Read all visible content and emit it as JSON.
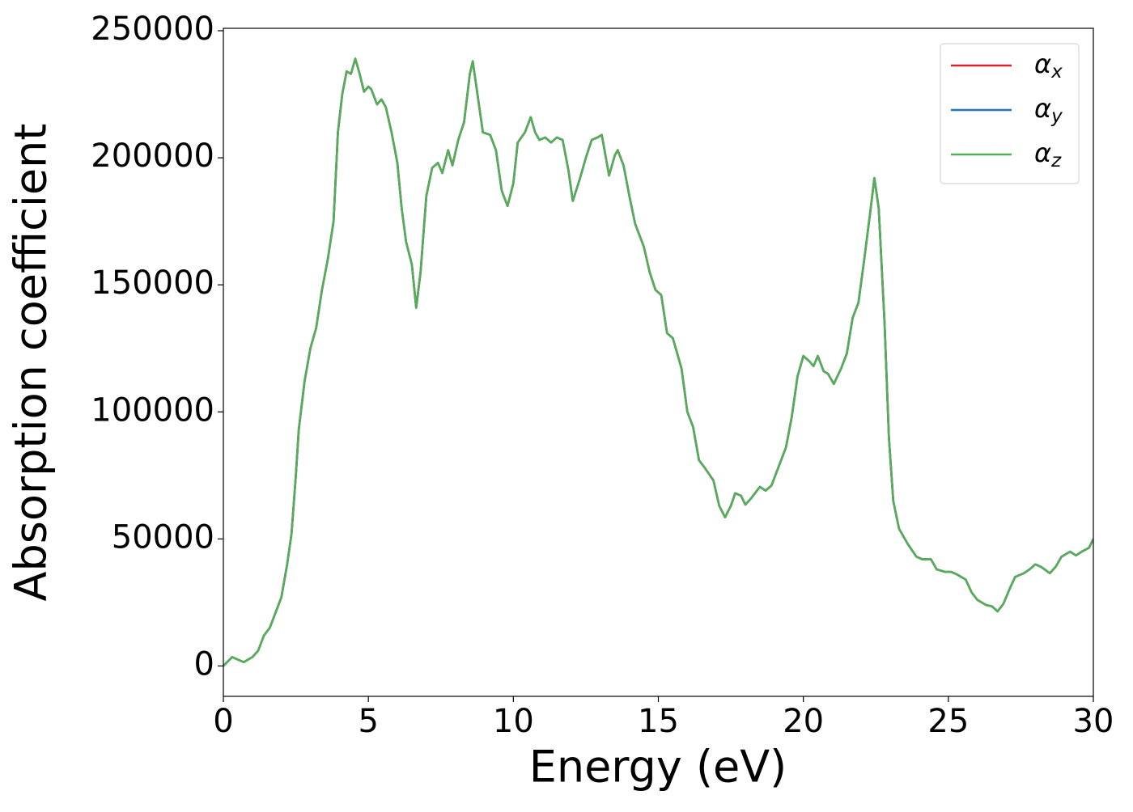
{
  "chart_data": {
    "type": "line",
    "xlabel": "Energy (eV)",
    "ylabel": "Absorption coefficient",
    "xlim": [
      0,
      30
    ],
    "xticks": [
      0,
      5,
      10,
      15,
      20,
      25,
      30
    ],
    "ylim": [
      -11950,
      250950
    ],
    "yticks": [
      0,
      50000,
      100000,
      150000,
      200000,
      250000
    ],
    "legend": "upper right",
    "x": [
      0,
      0.3,
      0.7,
      1.0,
      1.2,
      1.4,
      1.6,
      1.8,
      2.0,
      2.2,
      2.35,
      2.5,
      2.6,
      2.8,
      3.0,
      3.2,
      3.4,
      3.6,
      3.8,
      3.95,
      4.1,
      4.25,
      4.4,
      4.55,
      4.7,
      4.85,
      5.0,
      5.1,
      5.3,
      5.45,
      5.6,
      5.8,
      6.0,
      6.15,
      6.3,
      6.5,
      6.65,
      6.8,
      7.0,
      7.2,
      7.4,
      7.55,
      7.75,
      7.9,
      8.1,
      8.3,
      8.5,
      8.6,
      8.75,
      8.95,
      9.2,
      9.4,
      9.6,
      9.8,
      10.0,
      10.15,
      10.4,
      10.6,
      10.75,
      10.9,
      11.1,
      11.3,
      11.5,
      11.7,
      11.9,
      12.05,
      12.3,
      12.5,
      12.7,
      12.9,
      13.05,
      13.3,
      13.5,
      13.6,
      13.8,
      14.0,
      14.2,
      14.5,
      14.7,
      14.9,
      15.1,
      15.3,
      15.5,
      15.8,
      16.0,
      16.2,
      16.4,
      16.6,
      16.9,
      17.1,
      17.3,
      17.5,
      17.65,
      17.85,
      18.0,
      18.2,
      18.5,
      18.7,
      18.9,
      19.1,
      19.4,
      19.6,
      19.8,
      20.0,
      20.2,
      20.35,
      20.5,
      20.7,
      20.85,
      21.05,
      21.3,
      21.5,
      21.7,
      21.9,
      22.1,
      22.3,
      22.45,
      22.6,
      22.8,
      22.95,
      23.1,
      23.3,
      23.6,
      23.9,
      24.1,
      24.4,
      24.6,
      24.9,
      25.1,
      25.3,
      25.6,
      25.8,
      26.0,
      26.3,
      26.5,
      26.7,
      26.9,
      27.1,
      27.3,
      27.6,
      27.8,
      28.0,
      28.2,
      28.5,
      28.7,
      28.9,
      29.2,
      29.4,
      29.6,
      29.85,
      30.0
    ],
    "series": [
      {
        "name": "αx",
        "color": "#d62728",
        "values": [
          0,
          3500,
          1500,
          3500,
          6000,
          12000,
          15000,
          21000,
          27000,
          40000,
          52000,
          75000,
          93000,
          112000,
          125000,
          133000,
          148000,
          160000,
          175000,
          210000,
          225000,
          234000,
          233000,
          239000,
          233000,
          226000,
          228000,
          227000,
          221000,
          223000,
          220000,
          210000,
          198000,
          180000,
          167000,
          158000,
          141000,
          155000,
          185000,
          196000,
          198000,
          194000,
          203000,
          197000,
          207000,
          214000,
          233000,
          238000,
          226000,
          210000,
          209000,
          203000,
          187000,
          181000,
          190000,
          206000,
          210000,
          216000,
          210000,
          207000,
          208000,
          206000,
          208000,
          207000,
          195000,
          183000,
          192000,
          200000,
          207000,
          208000,
          209000,
          193000,
          201000,
          203000,
          197000,
          185000,
          174000,
          165000,
          155000,
          148000,
          146000,
          131000,
          129000,
          117000,
          100000,
          94000,
          81000,
          78000,
          73000,
          63000,
          58500,
          63000,
          68000,
          67000,
          63500,
          66000,
          70500,
          69000,
          71000,
          77000,
          86000,
          98000,
          114000,
          122000,
          120000,
          118000,
          122000,
          116000,
          115000,
          111000,
          117000,
          123000,
          137000,
          143000,
          160000,
          178000,
          192000,
          180000,
          135000,
          90000,
          65000,
          54000,
          48000,
          43000,
          42000,
          42000,
          38000,
          37000,
          37000,
          36000,
          34000,
          29000,
          26000,
          24000,
          23500,
          21500,
          24500,
          30000,
          35000,
          36500,
          38000,
          40000,
          39000,
          36500,
          39000,
          43000,
          45000,
          43500,
          45000,
          46500,
          50000
        ]
      },
      {
        "name": "αy",
        "color": "#1f77b4",
        "values": [
          0,
          3500,
          1500,
          3500,
          6000,
          12000,
          15000,
          21000,
          27000,
          40000,
          52000,
          75000,
          93000,
          112000,
          125000,
          133000,
          148000,
          160000,
          175000,
          210000,
          225000,
          234000,
          233000,
          239000,
          233000,
          226000,
          228000,
          227000,
          221000,
          223000,
          220000,
          210000,
          198000,
          180000,
          167000,
          158000,
          141000,
          155000,
          185000,
          196000,
          198000,
          194000,
          203000,
          197000,
          207000,
          214000,
          233000,
          238000,
          226000,
          210000,
          209000,
          203000,
          187000,
          181000,
          190000,
          206000,
          210000,
          216000,
          210000,
          207000,
          208000,
          206000,
          208000,
          207000,
          195000,
          183000,
          192000,
          200000,
          207000,
          208000,
          209000,
          193000,
          201000,
          203000,
          197000,
          185000,
          174000,
          165000,
          155000,
          148000,
          146000,
          131000,
          129000,
          117000,
          100000,
          94000,
          81000,
          78000,
          73000,
          63000,
          58500,
          63000,
          68000,
          67000,
          63500,
          66000,
          70500,
          69000,
          71000,
          77000,
          86000,
          98000,
          114000,
          122000,
          120000,
          118000,
          122000,
          116000,
          115000,
          111000,
          117000,
          123000,
          137000,
          143000,
          160000,
          178000,
          192000,
          180000,
          135000,
          90000,
          65000,
          54000,
          48000,
          43000,
          42000,
          42000,
          38000,
          37000,
          37000,
          36000,
          34000,
          29000,
          26000,
          24000,
          23500,
          21500,
          24500,
          30000,
          35000,
          36500,
          38000,
          40000,
          39000,
          36500,
          39000,
          43000,
          45000,
          43500,
          45000,
          46500,
          50000
        ]
      },
      {
        "name": "αz",
        "color": "#57ad57",
        "values": [
          0,
          3500,
          1500,
          3500,
          6000,
          12000,
          15000,
          21000,
          27000,
          40000,
          52000,
          75000,
          93000,
          112000,
          125000,
          133000,
          148000,
          160000,
          175000,
          210000,
          225000,
          234000,
          233000,
          239000,
          233000,
          226000,
          228000,
          227000,
          221000,
          223000,
          220000,
          210000,
          198000,
          180000,
          167000,
          158000,
          141000,
          155000,
          185000,
          196000,
          198000,
          194000,
          203000,
          197000,
          207000,
          214000,
          233000,
          238000,
          226000,
          210000,
          209000,
          203000,
          187000,
          181000,
          190000,
          206000,
          210000,
          216000,
          210000,
          207000,
          208000,
          206000,
          208000,
          207000,
          195000,
          183000,
          192000,
          200000,
          207000,
          208000,
          209000,
          193000,
          201000,
          203000,
          197000,
          185000,
          174000,
          165000,
          155000,
          148000,
          146000,
          131000,
          129000,
          117000,
          100000,
          94000,
          81000,
          78000,
          73000,
          63000,
          58500,
          63000,
          68000,
          67000,
          63500,
          66000,
          70500,
          69000,
          71000,
          77000,
          86000,
          98000,
          114000,
          122000,
          120000,
          118000,
          122000,
          116000,
          115000,
          111000,
          117000,
          123000,
          137000,
          143000,
          160000,
          178000,
          192000,
          180000,
          135000,
          90000,
          65000,
          54000,
          48000,
          43000,
          42000,
          42000,
          38000,
          37000,
          37000,
          36000,
          34000,
          29000,
          26000,
          24000,
          23500,
          21500,
          24500,
          30000,
          35000,
          36500,
          38000,
          40000,
          39000,
          36500,
          39000,
          43000,
          45000,
          43500,
          45000,
          46500,
          50000
        ]
      }
    ]
  }
}
